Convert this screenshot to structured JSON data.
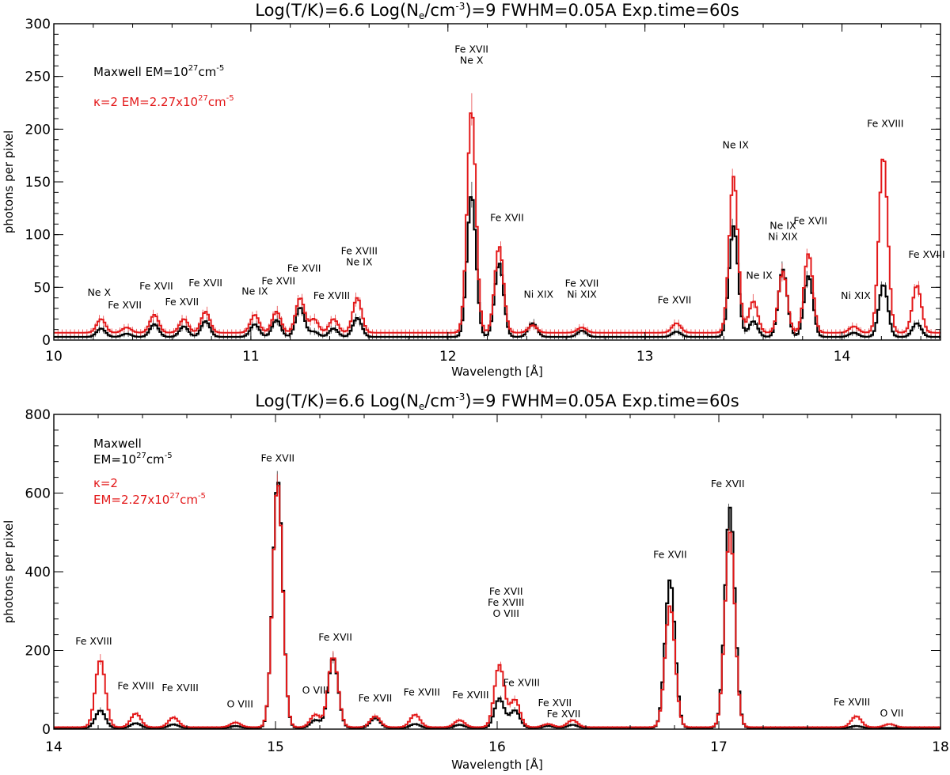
{
  "chart_data": [
    {
      "type": "line",
      "title_parts": [
        "Log(T/K)=6.6",
        "Log(N",
        "e",
        "/cm",
        "-3",
        ")=9",
        "FWHM=0.05A",
        "Exp.time=60s"
      ],
      "xlabel": "Wavelength [Å]",
      "ylabel": "photons per pixel",
      "xlim": [
        10,
        14.5
      ],
      "ylim": [
        0,
        300
      ],
      "xticks": [
        10,
        11,
        12,
        13,
        14
      ],
      "yticks": [
        0,
        50,
        100,
        150,
        200,
        250,
        300
      ],
      "legend": {
        "placement": "top-left",
        "maxwell": [
          "Maxwell",
          "EM=10",
          "27",
          "cm",
          "-5"
        ],
        "kappa": [
          "κ=2",
          "EM=2.27x10",
          "27",
          "cm",
          "-5"
        ]
      },
      "series": [
        {
          "name": "Maxwell",
          "color": "#000000",
          "baseline": 3,
          "peaks": [
            [
              10.24,
              8
            ],
            [
              10.37,
              3
            ],
            [
              10.51,
              12
            ],
            [
              10.66,
              10
            ],
            [
              10.77,
              15
            ],
            [
              11.02,
              12
            ],
            [
              11.13,
              16
            ],
            [
              11.25,
              28
            ],
            [
              11.32,
              5
            ],
            [
              11.42,
              8
            ],
            [
              11.54,
              18
            ],
            [
              12.12,
              135
            ],
            [
              12.26,
              70
            ],
            [
              12.43,
              13
            ],
            [
              12.68,
              6
            ],
            [
              13.16,
              5
            ],
            [
              13.45,
              105
            ],
            [
              13.55,
              15
            ],
            [
              13.7,
              64
            ],
            [
              13.83,
              58
            ],
            [
              14.06,
              4
            ],
            [
              14.21,
              50
            ],
            [
              14.38,
              13
            ]
          ]
        },
        {
          "name": "κ=2",
          "color": "#e3191a",
          "baseline": 7,
          "peaks": [
            [
              10.24,
              13
            ],
            [
              10.37,
              5
            ],
            [
              10.51,
              17
            ],
            [
              10.66,
              13
            ],
            [
              10.77,
              20
            ],
            [
              11.02,
              17
            ],
            [
              11.13,
              20
            ],
            [
              11.25,
              33
            ],
            [
              11.32,
              13
            ],
            [
              11.42,
              13
            ],
            [
              11.54,
              33
            ],
            [
              12.12,
              212
            ],
            [
              12.26,
              82
            ],
            [
              12.43,
              7
            ],
            [
              12.68,
              5
            ],
            [
              13.16,
              9
            ],
            [
              13.45,
              148
            ],
            [
              13.55,
              30
            ],
            [
              13.7,
              58
            ],
            [
              13.83,
              75
            ],
            [
              14.06,
              6
            ],
            [
              14.21,
              168
            ],
            [
              14.38,
              45
            ]
          ]
        }
      ],
      "annotations": [
        {
          "x": 10.23,
          "y": 42,
          "lines": [
            "Ne X"
          ]
        },
        {
          "x": 10.36,
          "y": 30,
          "lines": [
            "Fe XVII"
          ]
        },
        {
          "x": 10.52,
          "y": 48,
          "lines": [
            "Fe XVII"
          ]
        },
        {
          "x": 10.65,
          "y": 33,
          "lines": [
            "Fe XVII"
          ]
        },
        {
          "x": 10.77,
          "y": 51,
          "lines": [
            "Fe XVII"
          ]
        },
        {
          "x": 11.02,
          "y": 43,
          "lines": [
            "Ne IX"
          ]
        },
        {
          "x": 11.14,
          "y": 53,
          "lines": [
            "Fe XVII"
          ]
        },
        {
          "x": 11.27,
          "y": 65,
          "lines": [
            "Fe XVII"
          ]
        },
        {
          "x": 11.41,
          "y": 39,
          "lines": [
            "Fe XVIII"
          ]
        },
        {
          "x": 11.55,
          "y": 71,
          "lines": [
            "Fe XVIII",
            "Ne IX"
          ]
        },
        {
          "x": 12.12,
          "y": 262,
          "lines": [
            "Fe XVII",
            "Ne X"
          ]
        },
        {
          "x": 12.3,
          "y": 113,
          "lines": [
            "Fe XVII"
          ]
        },
        {
          "x": 12.46,
          "y": 40,
          "lines": [
            "Ni XIX"
          ]
        },
        {
          "x": 12.68,
          "y": 40,
          "lines": [
            "Fe XVII",
            "Ni XIX"
          ]
        },
        {
          "x": 13.15,
          "y": 35,
          "lines": [
            "Fe XVII"
          ]
        },
        {
          "x": 13.46,
          "y": 182,
          "lines": [
            "Ne IX"
          ]
        },
        {
          "x": 13.58,
          "y": 58,
          "lines": [
            "Ne IX"
          ]
        },
        {
          "x": 13.7,
          "y": 95,
          "lines": [
            "Ne IX",
            "Ni XIX"
          ]
        },
        {
          "x": 13.84,
          "y": 110,
          "lines": [
            "Fe XVII"
          ]
        },
        {
          "x": 14.07,
          "y": 39,
          "lines": [
            "Ni XIX"
          ]
        },
        {
          "x": 14.22,
          "y": 202,
          "lines": [
            "Fe XVIII"
          ]
        },
        {
          "x": 14.43,
          "y": 78,
          "lines": [
            "Fe XVIII"
          ]
        }
      ]
    },
    {
      "type": "line",
      "title_parts": [
        "Log(T/K)=6.6",
        "Log(N",
        "e",
        "/cm",
        "-3",
        ")=9",
        "FWHM=0.05A",
        "Exp.time=60s"
      ],
      "xlabel": "Wavelength [Å]",
      "ylabel": "photons per pixel",
      "xlim": [
        14,
        18
      ],
      "ylim": [
        0,
        800
      ],
      "xticks": [
        14,
        15,
        16,
        17,
        18
      ],
      "yticks": [
        0,
        200,
        400,
        600,
        800
      ],
      "legend": {
        "placement": "top-left",
        "maxwell": [
          "Maxwell",
          "EM=10",
          "27",
          "cm",
          "-5"
        ],
        "kappa": [
          "κ=2",
          "EM=2.27x10",
          "27",
          "cm",
          "-5"
        ]
      },
      "series": [
        {
          "name": "Maxwell",
          "color": "#000000",
          "baseline": 3,
          "peaks": [
            [
              14.21,
              45
            ],
            [
              14.37,
              12
            ],
            [
              14.54,
              9
            ],
            [
              14.82,
              5
            ],
            [
              15.01,
              630
            ],
            [
              15.18,
              20
            ],
            [
              15.26,
              178
            ],
            [
              15.45,
              25
            ],
            [
              15.63,
              10
            ],
            [
              15.83,
              8
            ],
            [
              16.01,
              75
            ],
            [
              16.08,
              45
            ],
            [
              16.23,
              5
            ],
            [
              16.34,
              8
            ],
            [
              16.78,
              378
            ],
            [
              17.05,
              560
            ],
            [
              17.62,
              5
            ]
          ]
        },
        {
          "name": "κ=2",
          "color": "#e3191a",
          "baseline": 5,
          "peaks": [
            [
              14.21,
              172
            ],
            [
              14.37,
              35
            ],
            [
              14.54,
              25
            ],
            [
              14.82,
              12
            ],
            [
              15.01,
              620
            ],
            [
              15.18,
              32
            ],
            [
              15.26,
              180
            ],
            [
              15.45,
              28
            ],
            [
              15.63,
              32
            ],
            [
              15.83,
              18
            ],
            [
              16.01,
              158
            ],
            [
              16.08,
              70
            ],
            [
              16.23,
              8
            ],
            [
              16.34,
              18
            ],
            [
              16.78,
              310
            ],
            [
              17.05,
              495
            ],
            [
              17.62,
              28
            ],
            [
              17.77,
              8
            ]
          ]
        }
      ],
      "annotations": [
        {
          "x": 14.18,
          "y": 215,
          "lines": [
            "Fe XVIII"
          ]
        },
        {
          "x": 14.37,
          "y": 102,
          "lines": [
            "Fe XVIII"
          ]
        },
        {
          "x": 14.57,
          "y": 96,
          "lines": [
            "Fe XVIII"
          ]
        },
        {
          "x": 14.84,
          "y": 55,
          "lines": [
            "O VIII"
          ]
        },
        {
          "x": 15.01,
          "y": 680,
          "lines": [
            "Fe XVII"
          ]
        },
        {
          "x": 15.18,
          "y": 90,
          "lines": [
            "O VIII"
          ]
        },
        {
          "x": 15.27,
          "y": 225,
          "lines": [
            "Fe XVII"
          ]
        },
        {
          "x": 15.45,
          "y": 70,
          "lines": [
            "Fe XVII"
          ]
        },
        {
          "x": 15.66,
          "y": 85,
          "lines": [
            "Fe XVIII"
          ]
        },
        {
          "x": 15.88,
          "y": 78,
          "lines": [
            "Fe XVIII"
          ]
        },
        {
          "x": 16.04,
          "y": 285,
          "lines": [
            "Fe XVII",
            "Fe XVIII",
            "O VIII"
          ]
        },
        {
          "x": 16.11,
          "y": 110,
          "lines": [
            "Fe XVIII"
          ]
        },
        {
          "x": 16.26,
          "y": 58,
          "lines": [
            "Fe XVII"
          ]
        },
        {
          "x": 16.3,
          "y": 30,
          "lines": [
            "Fe XVII"
          ]
        },
        {
          "x": 16.78,
          "y": 435,
          "lines": [
            "Fe XVII"
          ]
        },
        {
          "x": 17.04,
          "y": 615,
          "lines": [
            "Fe XVII"
          ]
        },
        {
          "x": 17.6,
          "y": 60,
          "lines": [
            "Fe XVIII"
          ]
        },
        {
          "x": 17.78,
          "y": 32,
          "lines": [
            "O VII"
          ]
        }
      ]
    }
  ]
}
